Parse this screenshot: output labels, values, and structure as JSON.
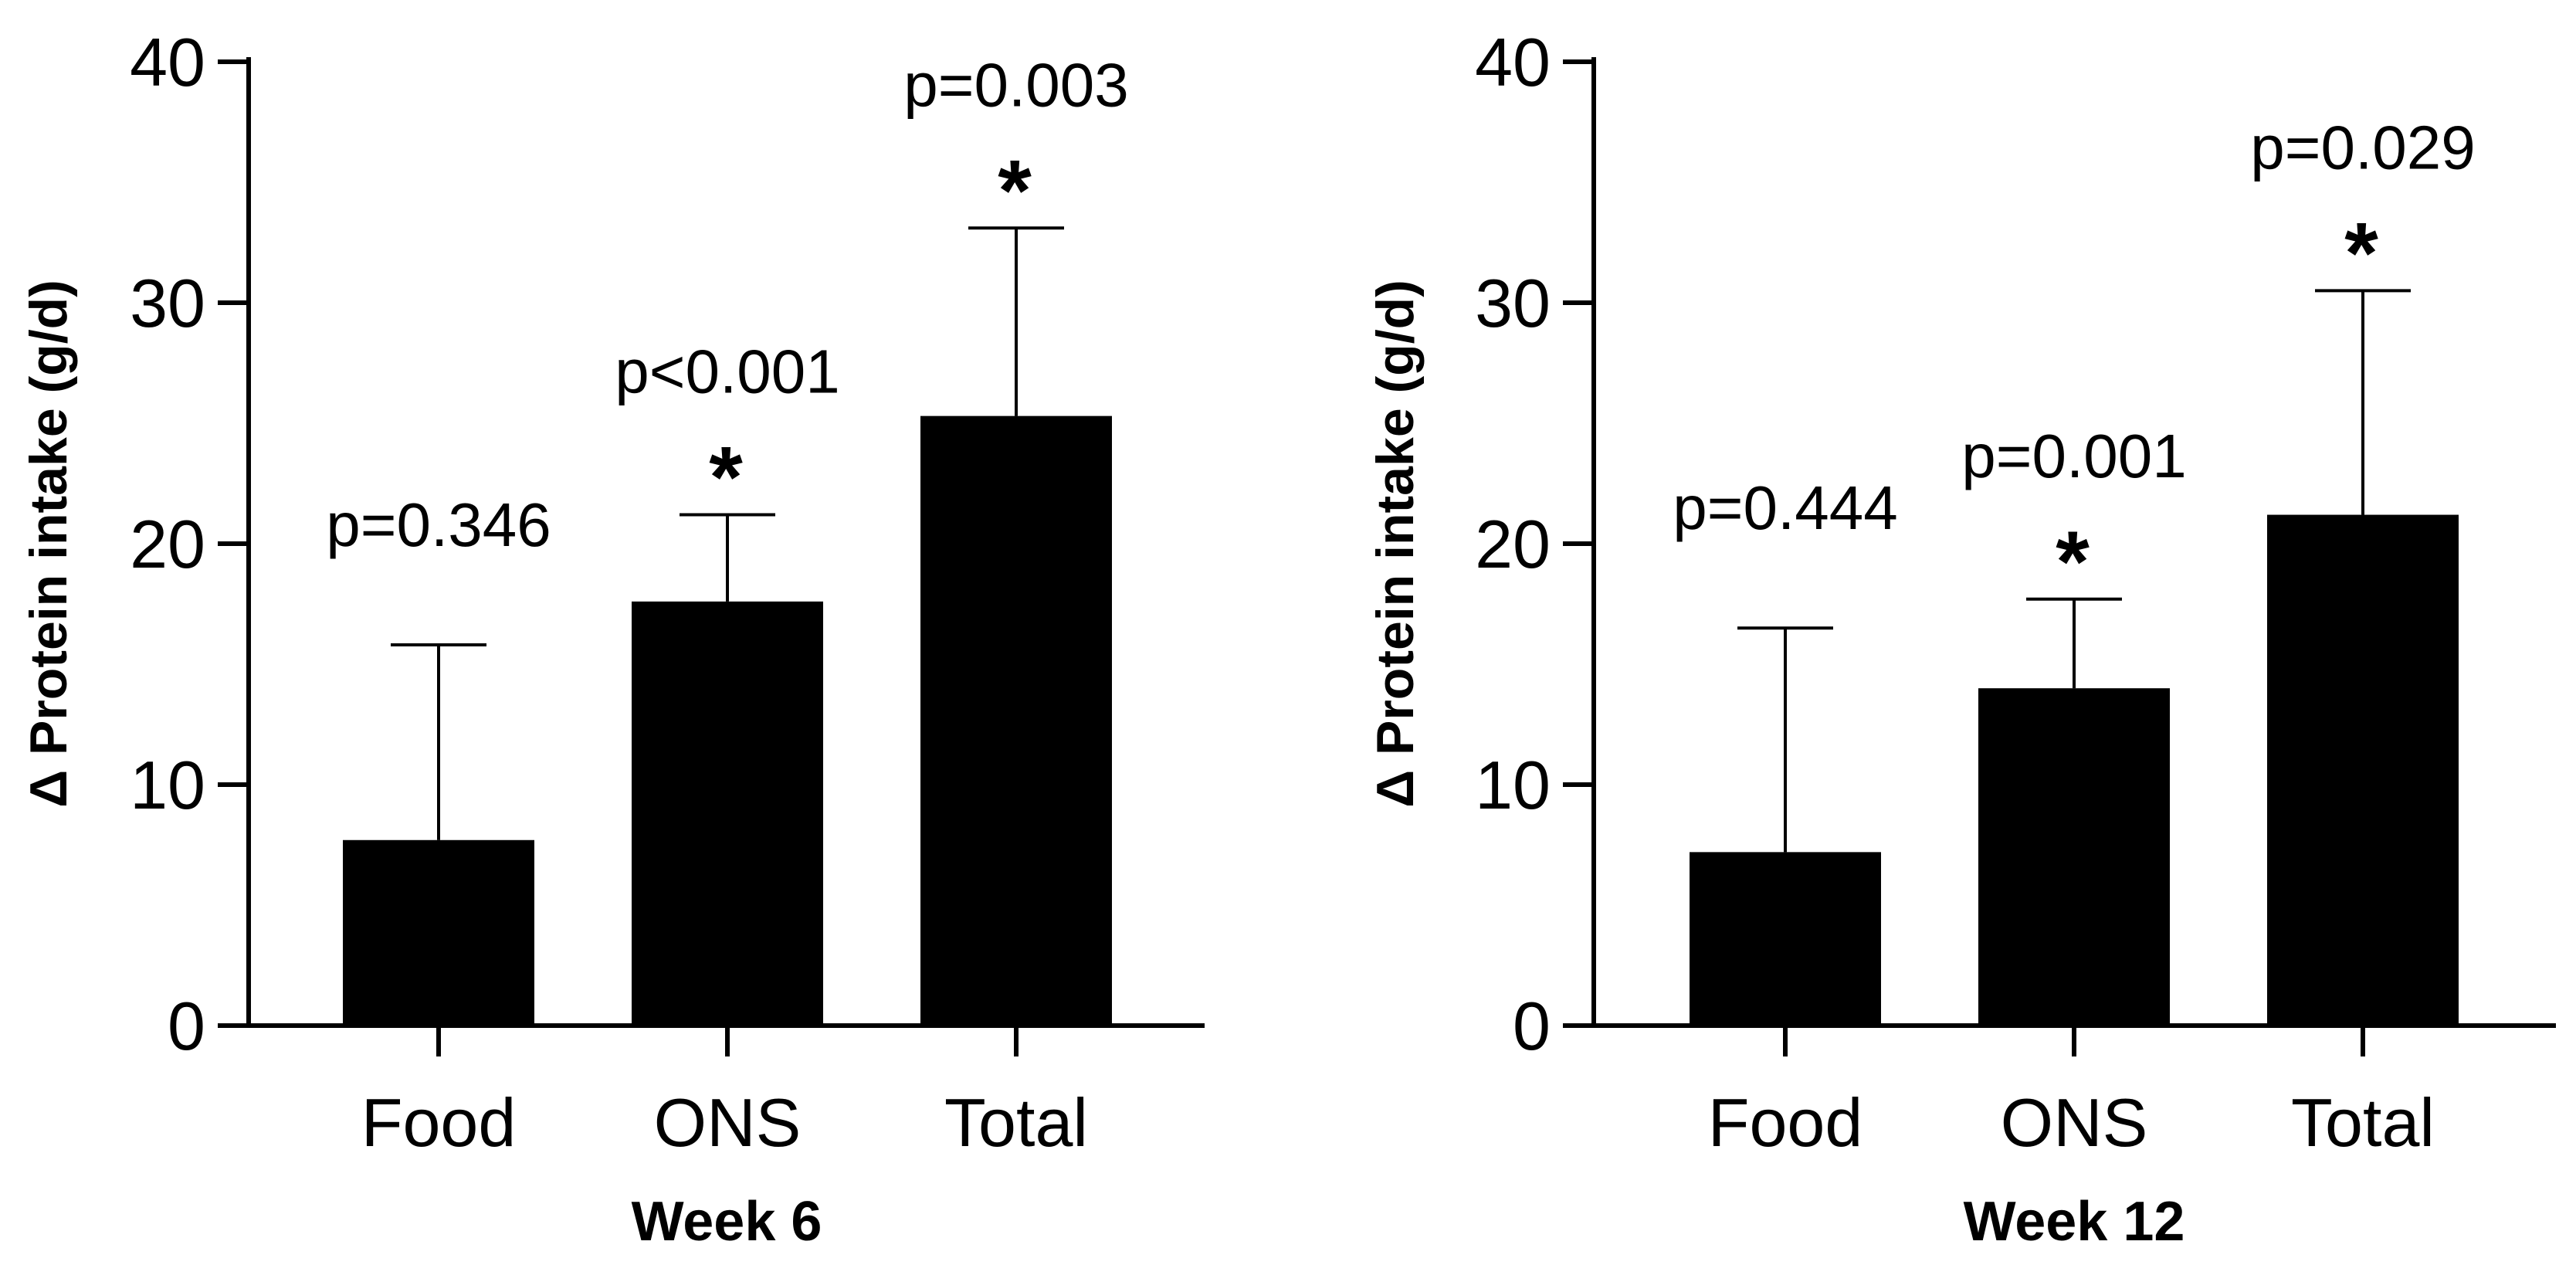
{
  "chart_data": [
    {
      "type": "bar",
      "title": "",
      "xlabel": "Week 6",
      "ylabel": "Δ Protein intake (g/d)",
      "ylim": [
        0,
        40
      ],
      "yticks": [
        0,
        10,
        20,
        30,
        40
      ],
      "categories": [
        "Food",
        "ONS",
        "Total"
      ],
      "values": [
        7.7,
        17.6,
        25.3
      ],
      "error_upper": [
        15.8,
        21.2,
        33.1
      ],
      "annotations": [
        "p=0.346",
        "p<0.001",
        "p=0.003"
      ],
      "significant": [
        false,
        true,
        true
      ],
      "significance_marker": "*"
    },
    {
      "type": "bar",
      "title": "",
      "xlabel": "Week 12",
      "ylabel": "Δ Protein intake (g/d)",
      "ylim": [
        0,
        40
      ],
      "yticks": [
        0,
        10,
        20,
        30,
        40
      ],
      "categories": [
        "Food",
        "ONS",
        "Total"
      ],
      "values": [
        7.2,
        14.0,
        21.2
      ],
      "error_upper": [
        16.5,
        17.7,
        30.5
      ],
      "annotations": [
        "p=0.444",
        "p=0.001",
        "p=0.029"
      ],
      "significant": [
        false,
        true,
        true
      ],
      "significance_marker": "*"
    }
  ]
}
